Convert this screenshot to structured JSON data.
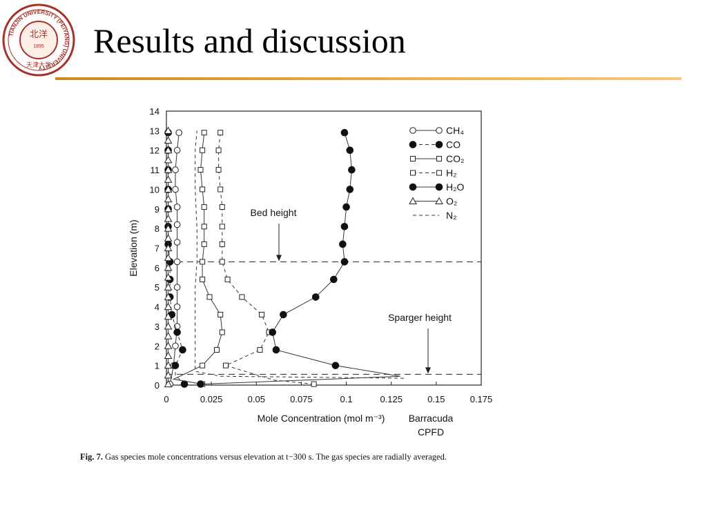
{
  "slide": {
    "title": "Results and discussion",
    "logo": {
      "text_ring": "TIANJIN UNIVERSITY (PEIYANG) UNIVERSITY",
      "year": "1895",
      "chinese": "天津大学",
      "seal": "北洋"
    },
    "accent_color": "#e8a23a"
  },
  "caption": {
    "label": "Fig. 7.",
    "text": "Gas species mole concentrations versus elevation at t−300 s. The gas species are radially averaged."
  },
  "chart_data": {
    "type": "line",
    "xlabel": "Mole Concentration (mol m⁻³)",
    "ylabel": "Elevation (m)",
    "xlim": [
      0,
      0.175
    ],
    "ylim": [
      0,
      14
    ],
    "xticks": [
      "0",
      "0.025",
      "0.05",
      "0.075",
      "0.1",
      "0.125",
      "0.15",
      "0.175"
    ],
    "yticks": [
      "0",
      "1",
      "2",
      "3",
      "4",
      "5",
      "6",
      "7",
      "8",
      "9",
      "10",
      "11",
      "12",
      "13",
      "14"
    ],
    "source_note": [
      "Barracuda",
      "CPFD"
    ],
    "legend_position": "top-right",
    "annotations": [
      {
        "label": "Bed height",
        "y": 6.3
      },
      {
        "label": "Sparger height",
        "y": 0.55
      }
    ],
    "series": [
      {
        "name": "CH₄",
        "marker": "open-circle",
        "line": "solid",
        "points": [
          [
            0.002,
            0.05
          ],
          [
            0.003,
            0.5
          ],
          [
            0.004,
            1
          ],
          [
            0.005,
            2
          ],
          [
            0.006,
            3
          ],
          [
            0.006,
            4
          ],
          [
            0.006,
            5
          ],
          [
            0.006,
            6.3
          ],
          [
            0.006,
            7.3
          ],
          [
            0.006,
            8.2
          ],
          [
            0.006,
            9.1
          ],
          [
            0.005,
            10
          ],
          [
            0.005,
            11
          ],
          [
            0.006,
            12
          ],
          [
            0.007,
            12.9
          ]
        ],
        "marked": [
          0,
          2,
          3,
          4,
          5,
          6,
          7,
          8,
          9,
          10,
          11,
          12,
          13,
          14
        ]
      },
      {
        "name": "CO",
        "marker": "filled-circle",
        "line": "dashed",
        "points": [
          [
            0.01,
            0.05
          ],
          [
            0.005,
            0.5
          ],
          [
            0.005,
            1
          ],
          [
            0.009,
            1.8
          ],
          [
            0.006,
            2.7
          ],
          [
            0.003,
            3.6
          ],
          [
            0.002,
            4.5
          ],
          [
            0.002,
            5.4
          ],
          [
            0.002,
            6.3
          ],
          [
            0.001,
            7.2
          ],
          [
            0.001,
            8.1
          ],
          [
            0.001,
            9
          ],
          [
            0.001,
            10
          ],
          [
            0.001,
            11
          ],
          [
            0.001,
            12
          ],
          [
            0.001,
            12.9
          ]
        ],
        "marked": [
          0,
          2,
          3,
          4,
          5,
          6,
          7,
          8,
          9,
          10,
          11,
          12,
          13,
          14,
          15
        ]
      },
      {
        "name": "CO₂",
        "marker": "open-square",
        "line": "solid",
        "points": [
          [
            0.02,
            0.05
          ],
          [
            0.004,
            0.3
          ],
          [
            0.02,
            1
          ],
          [
            0.028,
            1.8
          ],
          [
            0.031,
            2.7
          ],
          [
            0.03,
            3.6
          ],
          [
            0.024,
            4.5
          ],
          [
            0.02,
            5.4
          ],
          [
            0.02,
            6.3
          ],
          [
            0.021,
            7.2
          ],
          [
            0.021,
            8.1
          ],
          [
            0.021,
            9.1
          ],
          [
            0.02,
            10
          ],
          [
            0.019,
            11
          ],
          [
            0.02,
            12
          ],
          [
            0.021,
            12.9
          ]
        ],
        "marked": [
          0,
          2,
          3,
          4,
          5,
          6,
          7,
          8,
          9,
          10,
          11,
          12,
          13,
          14,
          15
        ]
      },
      {
        "name": "H₂",
        "marker": "open-square",
        "line": "dashed",
        "points": [
          [
            0.082,
            0.05
          ],
          [
            0.06,
            0.25
          ],
          [
            0.033,
            1
          ],
          [
            0.052,
            1.8
          ],
          [
            0.057,
            2.7
          ],
          [
            0.053,
            3.6
          ],
          [
            0.042,
            4.5
          ],
          [
            0.034,
            5.4
          ],
          [
            0.031,
            6.3
          ],
          [
            0.031,
            7.2
          ],
          [
            0.031,
            8.1
          ],
          [
            0.031,
            9.1
          ],
          [
            0.03,
            10
          ],
          [
            0.029,
            11
          ],
          [
            0.029,
            12
          ],
          [
            0.03,
            12.9
          ]
        ],
        "marked": [
          0,
          2,
          3,
          4,
          5,
          6,
          7,
          8,
          9,
          10,
          11,
          12,
          13,
          14,
          15
        ]
      },
      {
        "name": "H₂O",
        "marker": "filled-circle",
        "line": "solid",
        "points": [
          [
            0.019,
            0.05
          ],
          [
            0.09,
            0.3
          ],
          [
            0.13,
            0.45
          ],
          [
            0.094,
            1
          ],
          [
            0.061,
            1.8
          ],
          [
            0.059,
            2.7
          ],
          [
            0.065,
            3.6
          ],
          [
            0.083,
            4.5
          ],
          [
            0.093,
            5.4
          ],
          [
            0.099,
            6.3
          ],
          [
            0.098,
            7.2
          ],
          [
            0.099,
            8.1
          ],
          [
            0.1,
            9.1
          ],
          [
            0.102,
            10
          ],
          [
            0.103,
            11
          ],
          [
            0.102,
            12
          ],
          [
            0.099,
            12.9
          ]
        ],
        "marked": [
          0,
          3,
          4,
          5,
          6,
          7,
          8,
          9,
          10,
          11,
          12,
          13,
          14,
          15,
          16
        ]
      },
      {
        "name": "O₂",
        "marker": "open-triangle",
        "line": "solid",
        "points": [
          [
            0.001,
            0.05
          ],
          [
            0.001,
            0.5
          ],
          [
            0.001,
            1
          ],
          [
            0.001,
            1.5
          ],
          [
            0.001,
            2
          ],
          [
            0.001,
            2.5
          ],
          [
            0.001,
            3
          ],
          [
            0.001,
            3.5
          ],
          [
            0.001,
            4
          ],
          [
            0.001,
            4.5
          ],
          [
            0.001,
            5
          ],
          [
            0.001,
            5.5
          ],
          [
            0.001,
            6
          ],
          [
            0.001,
            6.5
          ],
          [
            0.001,
            7
          ],
          [
            0.001,
            7.5
          ],
          [
            0.001,
            8
          ],
          [
            0.001,
            8.5
          ],
          [
            0.001,
            9
          ],
          [
            0.001,
            9.5
          ],
          [
            0.001,
            10
          ],
          [
            0.001,
            10.5
          ],
          [
            0.001,
            11
          ],
          [
            0.001,
            11.5
          ],
          [
            0.001,
            12
          ],
          [
            0.001,
            12.5
          ],
          [
            0.001,
            13
          ]
        ],
        "marked": "all"
      },
      {
        "name": "N₂",
        "marker": "none",
        "line": "dashed",
        "points": [
          [
            0.132,
            0.35
          ],
          [
            0.03,
            0.45
          ],
          [
            0.016,
            0.7
          ],
          [
            0.016,
            1.5
          ],
          [
            0.016,
            3
          ],
          [
            0.016,
            5
          ],
          [
            0.017,
            6.3
          ],
          [
            0.017,
            8
          ],
          [
            0.016,
            10
          ],
          [
            0.016,
            12
          ],
          [
            0.017,
            13
          ]
        ],
        "marked": []
      }
    ]
  }
}
